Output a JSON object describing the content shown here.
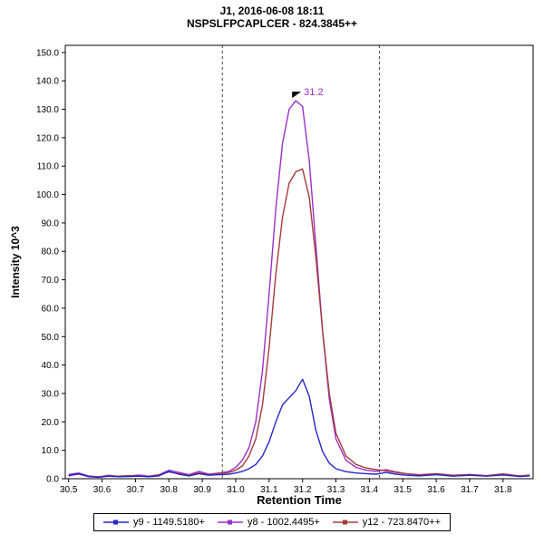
{
  "chart_data": {
    "type": "line",
    "title": "J1, 2016-06-08 18:11",
    "subtitle": "NSPSLFPCAPLCER - 824.3845++",
    "xlabel": "Retention Time",
    "ylabel": "Intensity 10^3",
    "xlim": [
      30.49,
      31.89
    ],
    "ylim": [
      0,
      152.5
    ],
    "x_ticks": [
      30.5,
      30.6,
      30.7,
      30.8,
      30.9,
      31.0,
      31.1,
      31.2,
      31.3,
      31.4,
      31.5,
      31.6,
      31.7,
      31.8
    ],
    "y_ticks": [
      0,
      10,
      20,
      30,
      40,
      50,
      60,
      70,
      80,
      90,
      100,
      110,
      120,
      130,
      140,
      150
    ],
    "grid": false,
    "legend_position": "bottom",
    "integration_boundaries": [
      30.96,
      31.43
    ],
    "peak_annotation": {
      "x": 31.185,
      "y": 133,
      "label": "31.2",
      "color": "#9b30c8"
    },
    "x": [
      30.5,
      30.53,
      30.56,
      30.59,
      30.62,
      30.65,
      30.68,
      30.71,
      30.74,
      30.77,
      30.8,
      30.83,
      30.86,
      30.89,
      30.92,
      30.95,
      30.98,
      31.0,
      31.02,
      31.04,
      31.06,
      31.08,
      31.1,
      31.12,
      31.14,
      31.16,
      31.18,
      31.2,
      31.22,
      31.24,
      31.26,
      31.28,
      31.3,
      31.33,
      31.36,
      31.39,
      31.42,
      31.45,
      31.48,
      31.51,
      31.55,
      31.6,
      31.65,
      31.7,
      31.75,
      31.8,
      31.85,
      31.88
    ],
    "series": [
      {
        "name": "y9 - 1149.5180+",
        "color": "#2626cc",
        "values": [
          1.0,
          1.8,
          0.7,
          0.5,
          0.9,
          0.7,
          0.8,
          0.9,
          0.7,
          1.0,
          2.6,
          1.6,
          1.0,
          1.8,
          1.2,
          1.4,
          1.6,
          2.0,
          2.6,
          3.5,
          5.0,
          8.0,
          13.0,
          20.0,
          26.0,
          28.5,
          31.0,
          35.0,
          29.0,
          17.0,
          9.5,
          5.5,
          3.5,
          2.5,
          2.0,
          1.8,
          1.6,
          2.2,
          1.6,
          1.2,
          1.0,
          1.4,
          0.9,
          1.2,
          0.9,
          1.3,
          0.8,
          1.0
        ]
      },
      {
        "name": "y8 - 1002.4495+",
        "color": "#9b30c8",
        "values": [
          1.5,
          2.0,
          1.0,
          0.6,
          1.2,
          0.8,
          1.0,
          1.3,
          0.9,
          1.4,
          3.0,
          2.2,
          1.4,
          2.6,
          1.6,
          2.0,
          2.6,
          4.0,
          6.5,
          11.0,
          20.0,
          38.0,
          65.0,
          95.0,
          118.0,
          130.0,
          133.0,
          131.0,
          112.0,
          82.0,
          52.0,
          28.0,
          14.0,
          6.5,
          4.0,
          3.0,
          2.6,
          3.2,
          2.4,
          1.8,
          1.2,
          1.6,
          1.0,
          1.4,
          1.0,
          1.6,
          0.9,
          1.2
        ]
      },
      {
        "name": "y12 - 723.8470++",
        "color": "#a33b3b",
        "values": [
          1.2,
          1.6,
          0.8,
          0.7,
          1.0,
          0.9,
          1.1,
          1.0,
          0.8,
          1.2,
          2.4,
          1.8,
          1.2,
          2.0,
          1.4,
          1.8,
          2.2,
          3.0,
          4.5,
          8.0,
          14.0,
          26.0,
          46.0,
          72.0,
          92.0,
          104.0,
          108.0,
          109.0,
          99.0,
          78.0,
          52.0,
          30.0,
          16.0,
          8.0,
          5.0,
          3.8,
          3.2,
          2.8,
          2.2,
          1.8,
          1.4,
          1.8,
          1.2,
          1.5,
          1.1,
          1.7,
          1.0,
          1.3
        ]
      }
    ]
  }
}
